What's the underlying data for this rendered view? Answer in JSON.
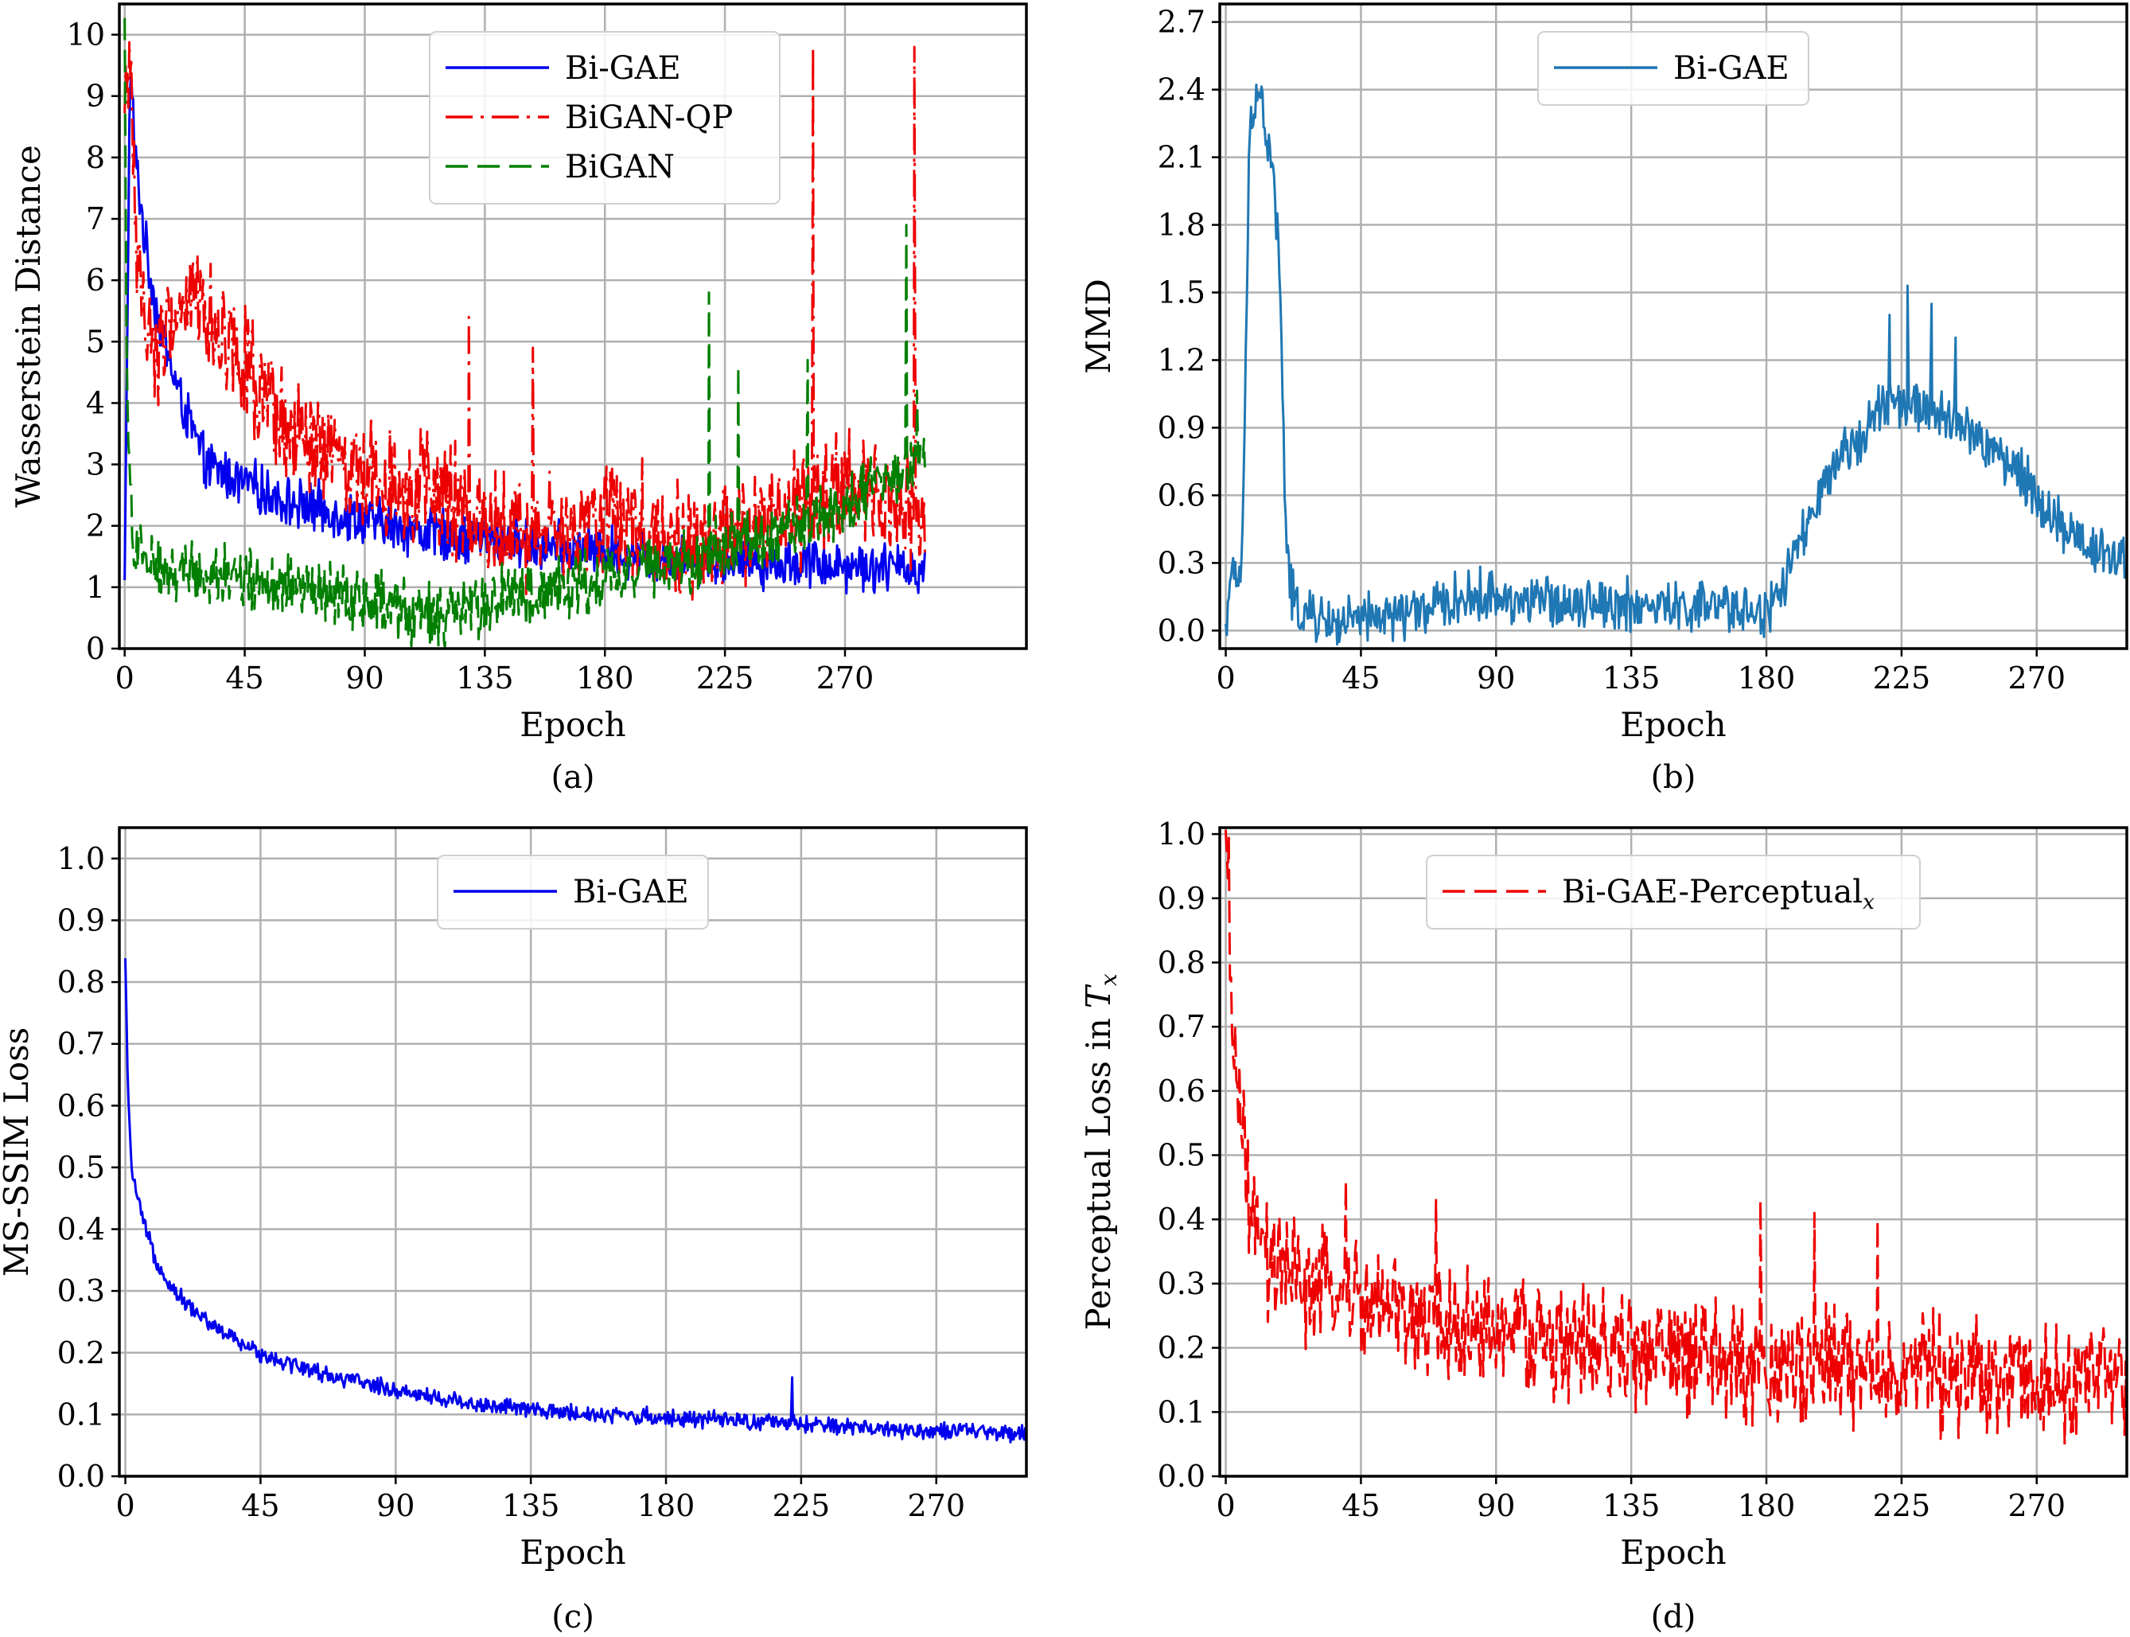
{
  "chart_data": [
    {
      "panel": "a",
      "type": "line",
      "caption": "(a)",
      "xlabel": "Epoch",
      "ylabel": "Wasserstein Distance",
      "xlim": [
        -2,
        338
      ],
      "ylim": [
        0,
        10.5
      ],
      "xticks": [
        0,
        45,
        90,
        135,
        180,
        225,
        270
      ],
      "yticks": [
        0,
        1,
        2,
        3,
        4,
        5,
        6,
        7,
        8,
        9,
        10
      ],
      "grid": true,
      "legend_position": "top-center",
      "series": [
        {
          "name": "Bi-GAE",
          "color": "#0000ee",
          "dash": "solid",
          "x": [
            0,
            2,
            4,
            8,
            12,
            16,
            20,
            25,
            30,
            40,
            50,
            60,
            70,
            80,
            90,
            100,
            110,
            120,
            130,
            140,
            150,
            160,
            170,
            180,
            190,
            200,
            210,
            220,
            230,
            240,
            250,
            260,
            270,
            280,
            290,
            300
          ],
          "y": [
            1.0,
            9.5,
            8.0,
            6.5,
            5.5,
            4.8,
            4.2,
            3.6,
            3.0,
            2.8,
            2.6,
            2.4,
            2.3,
            2.2,
            2.1,
            2.0,
            1.9,
            1.85,
            1.8,
            1.75,
            1.7,
            1.65,
            1.6,
            1.6,
            1.55,
            1.5,
            1.5,
            1.45,
            1.45,
            1.4,
            1.4,
            1.4,
            1.35,
            1.35,
            1.3,
            1.3
          ],
          "noise": 0.35
        },
        {
          "name": "BiGAN-QP",
          "color": "#ee0000",
          "dash": "dashdot",
          "x": [
            0,
            2,
            5,
            10,
            15,
            20,
            25,
            30,
            35,
            40,
            45,
            50,
            60,
            70,
            80,
            90,
            100,
            110,
            120,
            130,
            140,
            150,
            160,
            170,
            180,
            190,
            200,
            210,
            220,
            230,
            240,
            250,
            260,
            270,
            280,
            290,
            300
          ],
          "y": [
            8.5,
            9.8,
            6.0,
            5.0,
            5.0,
            5.5,
            5.8,
            5.5,
            5.2,
            5.0,
            4.8,
            4.0,
            3.5,
            3.3,
            3.0,
            2.9,
            2.8,
            2.6,
            2.4,
            2.1,
            2.0,
            1.9,
            1.9,
            1.8,
            2.2,
            2.0,
            1.9,
            1.8,
            1.8,
            1.9,
            2.0,
            2.2,
            2.4,
            2.5,
            2.4,
            2.3,
            2.0
          ],
          "noise": 0.8,
          "spikes": [
            [
              129,
              5.4
            ],
            [
              153,
              4.9
            ],
            [
              194,
              3.1
            ],
            [
              258,
              9.8
            ],
            [
              296,
              9.8
            ]
          ]
        },
        {
          "name": "BiGAN",
          "color": "#007f00",
          "dash": "dashed",
          "x": [
            0,
            1,
            3,
            8,
            15,
            25,
            35,
            45,
            60,
            75,
            90,
            105,
            120,
            135,
            150,
            165,
            180,
            195,
            210,
            225,
            240,
            255,
            270,
            285,
            300
          ],
          "y": [
            10.0,
            3.5,
            1.8,
            1.4,
            1.3,
            1.3,
            1.2,
            1.1,
            1.0,
            0.9,
            0.8,
            0.6,
            0.5,
            0.7,
            0.9,
            1.0,
            1.2,
            1.3,
            1.4,
            1.6,
            1.8,
            2.0,
            2.3,
            2.7,
            3.0
          ],
          "noise": 0.45,
          "spikes": [
            [
              219,
              5.8
            ],
            [
              230,
              4.6
            ],
            [
              256,
              4.7
            ],
            [
              293,
              6.9
            ],
            [
              297,
              4.2
            ]
          ]
        }
      ]
    },
    {
      "panel": "b",
      "type": "line",
      "caption": "(b)",
      "xlabel": "Epoch",
      "ylabel": "MMD",
      "xlim": [
        -2,
        300
      ],
      "ylim": [
        -0.08,
        2.78
      ],
      "xticks": [
        0,
        45,
        90,
        135,
        180,
        225,
        270
      ],
      "yticks": [
        "0.0",
        "0.3",
        "0.6",
        "0.9",
        "1.2",
        "1.5",
        "1.8",
        "2.1",
        "2.4",
        "2.7"
      ],
      "grid": true,
      "legend_position": "top-center",
      "series": [
        {
          "name": "Bi-GAE",
          "color": "#1f77b4",
          "dash": "solid",
          "x": [
            0,
            1,
            3,
            5,
            6,
            7,
            8,
            9,
            10,
            12,
            14,
            16,
            18,
            19,
            20,
            22,
            25,
            30,
            40,
            50,
            60,
            70,
            80,
            90,
            100,
            110,
            120,
            130,
            140,
            150,
            160,
            170,
            180,
            182,
            185,
            190,
            195,
            200,
            205,
            210,
            215,
            220,
            225,
            230,
            235,
            240,
            245,
            250,
            255,
            260,
            265,
            270,
            275,
            280,
            285,
            290,
            295,
            300
          ],
          "y": [
            0.0,
            0.2,
            0.22,
            0.25,
            0.6,
            1.5,
            2.2,
            2.35,
            2.4,
            2.35,
            2.15,
            2.0,
            1.6,
            1.0,
            0.4,
            0.15,
            0.08,
            0.05,
            0.03,
            0.05,
            0.08,
            0.1,
            0.15,
            0.15,
            0.13,
            0.13,
            0.13,
            0.12,
            0.1,
            0.1,
            0.1,
            0.1,
            0.08,
            0.1,
            0.2,
            0.35,
            0.5,
            0.65,
            0.75,
            0.85,
            0.95,
            1.0,
            1.0,
            1.0,
            0.95,
            0.95,
            0.9,
            0.85,
            0.8,
            0.75,
            0.7,
            0.6,
            0.5,
            0.45,
            0.4,
            0.35,
            0.35,
            0.3
          ],
          "noise": 0.1,
          "spikes": [
            [
              227,
              1.53
            ],
            [
              221,
              1.4
            ],
            [
              235,
              1.45
            ],
            [
              243,
              1.3
            ]
          ]
        }
      ]
    },
    {
      "panel": "c",
      "type": "line",
      "caption": "(c)",
      "xlabel": "Epoch",
      "ylabel": "MS-SSIM Loss",
      "xlim": [
        -2,
        300
      ],
      "ylim": [
        0,
        1.05
      ],
      "xticks": [
        0,
        45,
        90,
        135,
        180,
        225,
        270
      ],
      "yticks": [
        "0.0",
        "0.1",
        "0.2",
        "0.3",
        "0.4",
        "0.5",
        "0.6",
        "0.7",
        "0.8",
        "0.9",
        "1.0"
      ],
      "grid": true,
      "legend_position": "top-center",
      "series": [
        {
          "name": "Bi-GAE",
          "color": "#0000ee",
          "dash": "solid",
          "x": [
            0,
            1,
            2,
            4,
            6,
            8,
            10,
            15,
            20,
            25,
            30,
            40,
            50,
            60,
            70,
            80,
            90,
            100,
            120,
            140,
            160,
            180,
            200,
            220,
            240,
            260,
            280,
            300
          ],
          "y": [
            0.83,
            0.6,
            0.5,
            0.45,
            0.41,
            0.38,
            0.35,
            0.31,
            0.28,
            0.26,
            0.24,
            0.21,
            0.19,
            0.175,
            0.16,
            0.15,
            0.14,
            0.13,
            0.115,
            0.105,
            0.1,
            0.095,
            0.09,
            0.085,
            0.08,
            0.075,
            0.072,
            0.07
          ],
          "noise": 0.012,
          "spikes": [
            [
              222,
              0.16
            ]
          ]
        }
      ]
    },
    {
      "panel": "d",
      "type": "line",
      "caption": "(d)",
      "xlabel": "Epoch",
      "ylabel": "Perceptual Loss in",
      "ylabel_symbol": "T",
      "ylabel_subscript": "x",
      "xlim": [
        -2,
        300
      ],
      "ylim": [
        0,
        1.01
      ],
      "xticks": [
        0,
        45,
        90,
        135,
        180,
        225,
        270
      ],
      "yticks": [
        "0.0",
        "0.1",
        "0.2",
        "0.3",
        "0.4",
        "0.5",
        "0.6",
        "0.7",
        "0.8",
        "0.9",
        "1.0"
      ],
      "grid": true,
      "legend_position": "top-center",
      "series": [
        {
          "name": "Bi-GAE-Perceptual",
          "name_subscript": "x",
          "color": "#ee0000",
          "dash": "dashed",
          "x": [
            0,
            1,
            2,
            4,
            6,
            8,
            10,
            15,
            20,
            30,
            40,
            50,
            60,
            80,
            100,
            120,
            140,
            160,
            180,
            200,
            220,
            240,
            260,
            280,
            300
          ],
          "y": [
            0.95,
            0.85,
            0.72,
            0.6,
            0.5,
            0.42,
            0.37,
            0.33,
            0.31,
            0.29,
            0.28,
            0.26,
            0.25,
            0.23,
            0.22,
            0.2,
            0.19,
            0.18,
            0.17,
            0.17,
            0.16,
            0.16,
            0.15,
            0.15,
            0.15
          ],
          "noise": 0.08,
          "spikes": [
            [
              1,
              1.0
            ],
            [
              40,
              0.46
            ],
            [
              70,
              0.43
            ],
            [
              178,
              0.43
            ],
            [
              196,
              0.41
            ],
            [
              217,
              0.4
            ]
          ]
        }
      ]
    }
  ]
}
